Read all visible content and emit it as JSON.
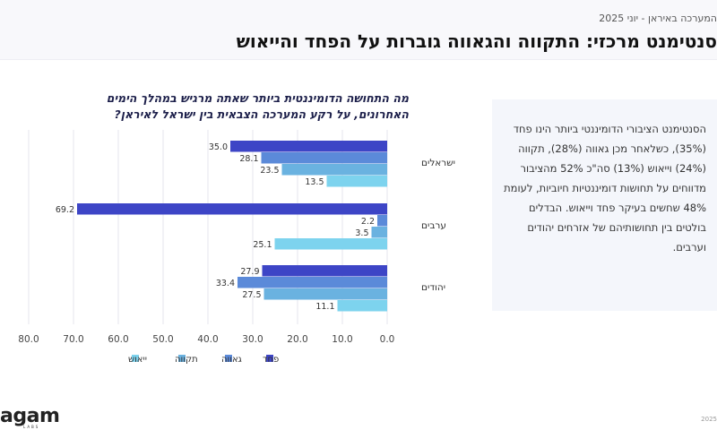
{
  "header": {
    "breadcrumb": "המערכה באיראן - יוני 2025",
    "title": "סנטימנט מרכזי: התקווה והגאווה גוברות על הפחד והייאוש"
  },
  "chart_data": {
    "type": "bar",
    "orientation": "horizontal",
    "title": "מה התחושה הדומיננטית ביותר שאתה מרגיש במהלך הימים האחרונים, על רקע המערכה הצבאית בין ישראל לאיראן?",
    "categories": [
      "ישראלים",
      "ערבים",
      "יהודים"
    ],
    "series": [
      {
        "name": "פחד",
        "color": "#3d45c6",
        "values": [
          35.0,
          69.2,
          27.9
        ]
      },
      {
        "name": "גאווה",
        "color": "#5b8ad9",
        "values": [
          28.1,
          2.2,
          33.4
        ]
      },
      {
        "name": "תקווה",
        "color": "#6ab2e0",
        "values": [
          23.5,
          3.5,
          27.5
        ]
      },
      {
        "name": "ייאוש",
        "color": "#7dd3ee",
        "values": [
          13.5,
          25.1,
          11.1
        ]
      }
    ],
    "value_labels": [
      [
        "35.0",
        "69.2",
        "27.9"
      ],
      [
        "28.1",
        "2.2",
        "33.4"
      ],
      [
        "23.5",
        "3.5",
        "27.5"
      ],
      [
        "13.5",
        "25.1",
        "11.1"
      ]
    ],
    "x_ticks": [
      "80.0",
      "70.0",
      "60.0",
      "50.0",
      "40.0",
      "30.0",
      "20.0",
      "10.0",
      "0.0"
    ],
    "xlim": [
      0,
      80
    ],
    "x_reversed": true,
    "grid": true,
    "legend_position": "bottom",
    "xlabel": "",
    "ylabel": ""
  },
  "side_text": "הסנטימנט הציבורי הדומיננטי ביותר הינו פחד (35%), כשלאחר מכן גאווה (28%), תקווה (24%) וייאוש (13%) סה\"כ 52% מהציבור מדווחים על תחושות דומיננטיות חיוביות, לעומת 48% שחשים בעיקר פחד וייאוש. הבדלים בולטים בין תחושותיהם של אזרחים יהודים וערבים.",
  "footer": {
    "logo": "agam",
    "logo_sub": "LABS",
    "year": "2025"
  }
}
